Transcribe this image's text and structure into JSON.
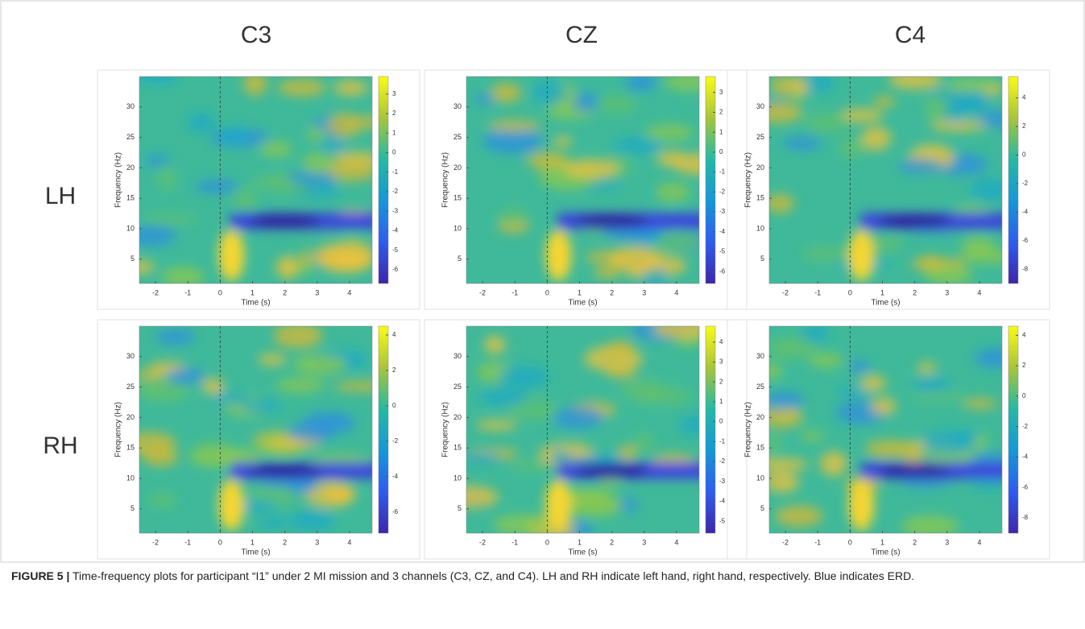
{
  "columns": [
    "C3",
    "CZ",
    "C4"
  ],
  "rows": [
    "LH",
    "RH"
  ],
  "x_label": "Time (s)",
  "y_label": "Frequency (Hz)",
  "xlim": [
    -2.5,
    4.7
  ],
  "xticks": [
    -2,
    -1,
    0,
    1,
    2,
    3,
    4
  ],
  "ylim": [
    1,
    35
  ],
  "yticks": [
    5,
    10,
    15,
    20,
    25,
    30
  ],
  "panels": [
    {
      "clim": [
        -6.7,
        3.9
      ],
      "cticks": [
        3,
        2,
        1,
        0,
        -1,
        -2,
        -3,
        -4,
        -5,
        -6
      ]
    },
    {
      "clim": [
        -6.6,
        3.8
      ],
      "cticks": [
        3,
        2,
        1,
        0,
        -1,
        -2,
        -3,
        -4,
        -5,
        -6
      ]
    },
    {
      "clim": [
        -9,
        5.5
      ],
      "cticks": [
        4,
        2,
        0,
        -2,
        -4,
        -6,
        -8
      ]
    },
    {
      "clim": [
        -7.2,
        4.5
      ],
      "cticks": [
        4,
        2,
        0,
        -2,
        -4,
        -6
      ]
    },
    {
      "clim": [
        -5.6,
        4.8
      ],
      "cticks": [
        4,
        3,
        2,
        1,
        0,
        -1,
        -2,
        -3,
        -4,
        -5
      ]
    },
    {
      "clim": [
        -9,
        4.6
      ],
      "cticks": [
        4,
        2,
        0,
        -2,
        -4,
        -6,
        -8
      ]
    }
  ],
  "caption": {
    "label": "FIGURE 5 |",
    "text": "Time-frequency plots for participant “I1” under 2 MI mission and 3 channels (C3, CZ, and C4). LH and RH indicate left hand, right hand, respectively. Blue indicates ERD."
  }
}
